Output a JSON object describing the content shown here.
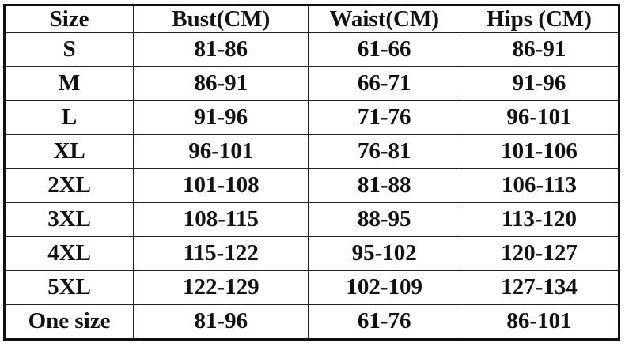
{
  "headers": [
    "Size",
    "Bust(CM)",
    "Waist(CM)",
    "Hips (CM)"
  ],
  "rows": [
    [
      "S",
      "81-86",
      "61-66",
      "86-91"
    ],
    [
      "M",
      "86-91",
      "66-71",
      "91-96"
    ],
    [
      "L",
      "91-96",
      "71-76",
      "96-101"
    ],
    [
      "XL",
      "96-101",
      "76-81",
      "101-106"
    ],
    [
      "2XL",
      "101-108",
      "81-88",
      "106-113"
    ],
    [
      "3XL",
      "108-115",
      "88-95",
      "113-120"
    ],
    [
      "4XL",
      "115-122",
      "95-102",
      "120-127"
    ],
    [
      "5XL",
      "122-129",
      "102-109",
      "127-134"
    ],
    [
      "One size",
      "81-96",
      "61-76",
      "86-101"
    ]
  ]
}
